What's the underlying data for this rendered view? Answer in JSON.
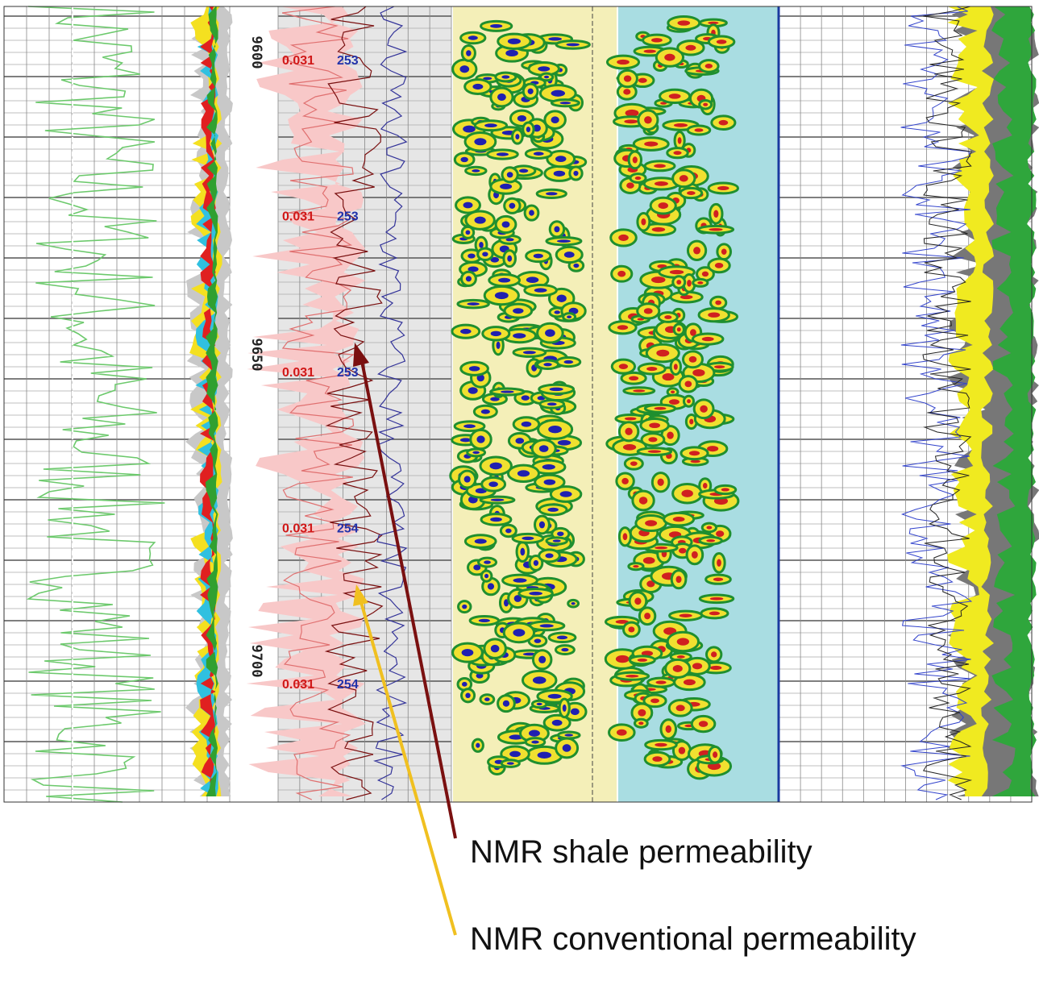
{
  "depth_labels": [
    "9600",
    "9650",
    "9700"
  ],
  "permeability_labels": [
    {
      "conventional": "0.031",
      "shale": "253"
    },
    {
      "conventional": "0.031",
      "shale": "253"
    },
    {
      "conventional": "0.031",
      "shale": "253"
    },
    {
      "conventional": "0.031",
      "shale": "254"
    },
    {
      "conventional": "0.031",
      "shale": "254"
    }
  ],
  "annotations": {
    "shale": "NMR shale permeability",
    "conventional": "NMR conventional permeability"
  }
}
